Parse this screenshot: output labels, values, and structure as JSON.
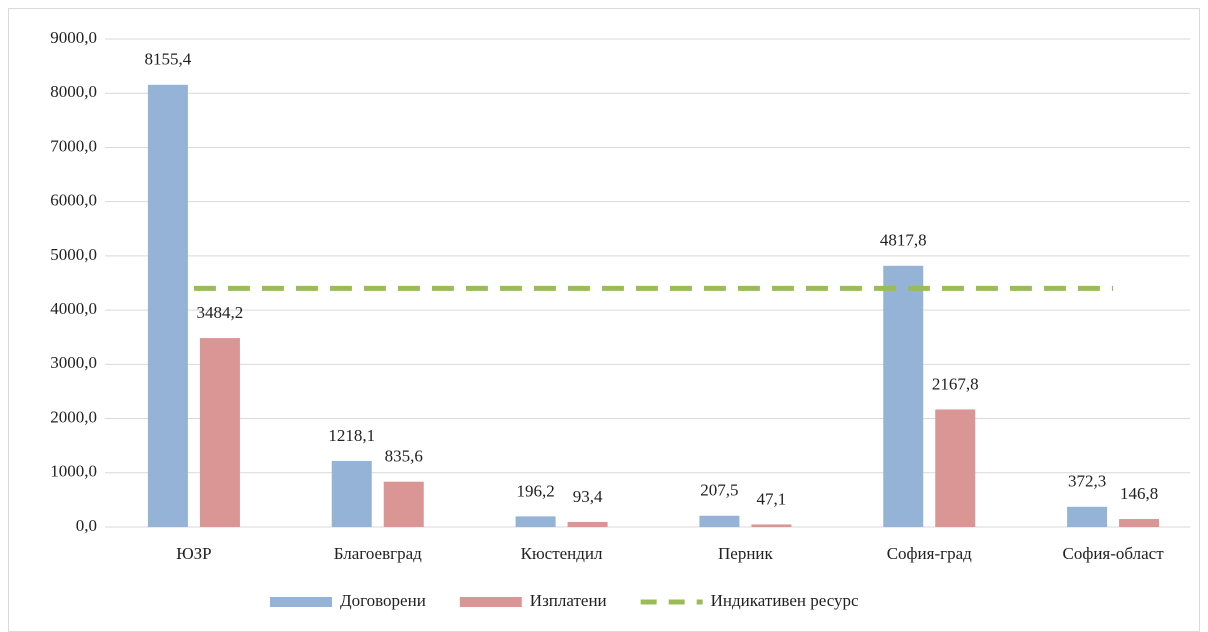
{
  "chart_data": {
    "type": "bar",
    "categories": [
      "ЮЗР",
      "Благоевград",
      "Кюстендил",
      "Перник",
      "София-град",
      "София-област"
    ],
    "series": [
      {
        "name": "Договорени",
        "color": "#95b3d7",
        "values": [
          8155.4,
          1218.1,
          196.2,
          207.5,
          4817.8,
          372.3
        ],
        "value_labels": [
          "8155,4",
          "1218,1",
          "196,2",
          "207,5",
          "4817,8",
          "372,3"
        ]
      },
      {
        "name": "Изплатени",
        "color": "#d99694",
        "values": [
          3484.2,
          835.6,
          93.4,
          47.1,
          2167.8,
          146.8
        ],
        "value_labels": [
          "3484,2",
          "835,6",
          "93,4",
          "47,1",
          "2167,8",
          "146,8"
        ]
      },
      {
        "name": "Индикативен ресурс",
        "type": "line",
        "color": "#9bbb59",
        "dashed": true,
        "values": [
          4400,
          4400,
          4400,
          4400,
          4400,
          4400
        ]
      }
    ],
    "ylim": [
      0,
      9000
    ],
    "yticks": [
      {
        "value": 0,
        "label": "0,0"
      },
      {
        "value": 1000,
        "label": "1000,0"
      },
      {
        "value": 2000,
        "label": "2000,0"
      },
      {
        "value": 3000,
        "label": "3000,0"
      },
      {
        "value": 4000,
        "label": "4000,0"
      },
      {
        "value": 5000,
        "label": "5000,0"
      },
      {
        "value": 6000,
        "label": "6000,0"
      },
      {
        "value": 7000,
        "label": "7000,0"
      },
      {
        "value": 8000,
        "label": "8000,0"
      },
      {
        "value": 9000,
        "label": "9000,0"
      }
    ],
    "grid": true,
    "legend": "bottom"
  }
}
